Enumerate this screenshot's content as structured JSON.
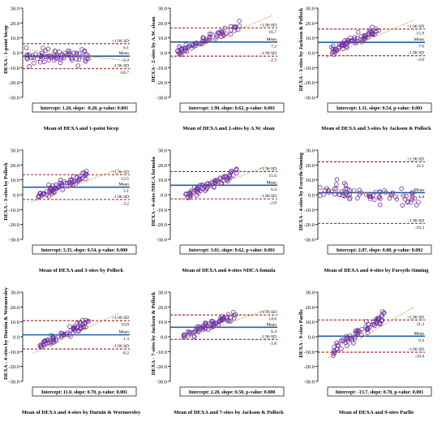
{
  "chart_data": [
    {
      "type": "scatter",
      "ylabel": "DEXA - 1-point bicep",
      "xlabel": "Mean of DEXA and 1-point bicep",
      "ylim": [
        -30,
        30
      ],
      "yticks": [
        "30.0",
        "20.0",
        "10.0",
        "0.0",
        "-10.0",
        "-20.0",
        "-30.0"
      ],
      "mean": -2.3,
      "upper": 6.1,
      "lower": -10.7,
      "mean_text": "-2.3",
      "upper_text": "6.1",
      "lower_text": "-10.7",
      "upper_label": "+1.96 SD",
      "mean_label": "Mean",
      "lower_label": "-1.96 SD",
      "stats": "Intercept: 1.20, slope: -0.20, p-value: 0.001",
      "trend": [
        [
          0.02,
          2.2
        ],
        [
          0.98,
          -5.3
        ]
      ],
      "cloud": {
        "seed": 11,
        "n": 75,
        "xmin": 0.02,
        "xmax": 0.62,
        "ystart": -2.3,
        "yend": -2.3,
        "spread": 4.8
      }
    },
    {
      "type": "scatter",
      "ylabel": "DEXA - 2-sites by A.W. sloan",
      "xlabel": "Mean of DEXA and 2-sites by A.W. sloan",
      "ylim": [
        -30,
        30
      ],
      "yticks": [
        "30.0",
        "20.0",
        "10.0",
        "0.0",
        "-10.0",
        "-20.0",
        "-30.0"
      ],
      "mean": 7.2,
      "upper": 16.7,
      "lower": -2.3,
      "mean_text": "7.2",
      "upper_text": "16.7",
      "lower_text": "-2.3",
      "upper_label": "+1.96 SD",
      "mean_label": "Mean",
      "lower_label": "-1.96 SD",
      "stats": "Intercept: 1.90, slope: 0.62, p-value: 0.001",
      "trend": [
        [
          0.02,
          -3.5
        ],
        [
          0.95,
          25
        ]
      ],
      "cloud": {
        "seed": 23,
        "n": 75,
        "xmin": 0.06,
        "xmax": 0.65,
        "ystart": 0.8,
        "yend": 18,
        "spread": 3.0
      }
    },
    {
      "type": "scatter",
      "ylabel": "DEXA - 3-sites by Jackson & Pollock",
      "xlabel": "Mean of DEXA and 3-sites by Jackson & Pollock",
      "ylim": [
        -30,
        30
      ],
      "yticks": [
        "30.0",
        "20.0",
        "10.0",
        "0.0",
        "-10.0",
        "-20.0",
        "-30.0"
      ],
      "mean": 7.0,
      "upper": 15.9,
      "lower": -2.0,
      "mean_text": "7.0",
      "upper_text": "15.9",
      "lower_text": "-2.0",
      "upper_label": "+1.96 SD",
      "mean_label": "Mean",
      "lower_label": "-1.96 SD",
      "stats": "Intercept: 1.11, slope: 0.54, p-value: 0.001",
      "trend": [
        [
          0.08,
          -3
        ],
        [
          0.9,
          22
        ]
      ],
      "cloud": {
        "seed": 37,
        "n": 75,
        "xmin": 0.12,
        "xmax": 0.58,
        "ystart": 1.0,
        "yend": 16,
        "spread": 3.0
      }
    },
    {
      "type": "scatter",
      "ylabel": "DEXA - 3-sites by Pollock",
      "xlabel": "Mean of DEXA and 3-sites by Pollock",
      "ylim": [
        -30,
        30
      ],
      "yticks": [
        "30.0",
        "20.0",
        "10.0",
        "0.0",
        "-10.0",
        "-20.0",
        "-30.0"
      ],
      "mean": 5.1,
      "upper": 13.5,
      "lower": -3.2,
      "mean_text": "5.1",
      "upper_text": "13.5",
      "lower_text": "-3.2",
      "upper_label": "+1.96 SD",
      "mean_label": "Mean",
      "lower_label": "-1.96 SD",
      "stats": "Intercept: 3.35, slope: 0.54, p-value: 0.000",
      "trend": [
        [
          0.08,
          -5
        ],
        [
          0.9,
          17.5
        ]
      ],
      "cloud": {
        "seed": 41,
        "n": 75,
        "xmin": 0.14,
        "xmax": 0.6,
        "ystart": -1.0,
        "yend": 14,
        "spread": 3.0
      }
    },
    {
      "type": "scatter",
      "ylabel": "DEXA - 4-sites NHCA formula",
      "xlabel": "Mean of DEXA and 4-sites NHCA fomula",
      "ylim": [
        -30,
        30
      ],
      "yticks": [
        "30.0",
        "20.0",
        "10.0",
        "0.0",
        "-10.0",
        "-20.0",
        "-30.0"
      ],
      "mean": 6.4,
      "upper": 15.6,
      "lower": -2.8,
      "mean_text": "6.4",
      "upper_text": "15.6",
      "lower_text": "-2.8",
      "upper_label": "+1.96 SD",
      "mean_label": "Mean",
      "lower_label": "-1.96 SD",
      "stats": "Intercept: 3.01, slope: 0.62, p-value: 0.001",
      "trend": [
        [
          0.1,
          -3.5
        ],
        [
          0.9,
          19.5
        ]
      ],
      "cloud": {
        "seed": 53,
        "n": 75,
        "xmin": 0.14,
        "xmax": 0.62,
        "ystart": -0.5,
        "yend": 15,
        "spread": 3.2
      }
    },
    {
      "type": "scatter",
      "ylabel": "DEXA - 4-sites by Forsyth-Sinning",
      "xlabel": "Mean of DEXA and 4-sites by Forsyth-Sinning",
      "ylim": [
        -30,
        30
      ],
      "yticks": [
        "30.0",
        "20.0",
        "10.0",
        "0.0",
        "-10.0",
        "-20.0",
        "-30.0"
      ],
      "mean": 1.4,
      "upper": 22.1,
      "lower": -19.3,
      "mean_text": "1.4",
      "upper_text": "22.1",
      "lower_text": "-19.3",
      "upper_label": "+1.96 SD",
      "mean_label": "Mean",
      "lower_label": "-1.96 SD",
      "stats": "Intercept: 2.87, slope: 0.08, p-value: 0.002",
      "trend": [
        [
          0.02,
          3.5
        ],
        [
          0.98,
          -1.5
        ]
      ],
      "cloud": {
        "seed": 67,
        "n": 75,
        "xmin": 0.02,
        "xmax": 0.95,
        "ystart": 3.5,
        "yend": -3.0,
        "spread": 5.5
      }
    },
    {
      "type": "scatter",
      "ylabel": "DEXA - 4-sites by Durnin & Wormersley",
      "xlabel": "Mean of DEXA and 4-sites by Durnin & Wormersley",
      "ylim": [
        -30,
        30
      ],
      "yticks": [
        "30.0",
        "20.0",
        "10.0",
        "0.0",
        "-10.0",
        "-20.0",
        "-30.0"
      ],
      "mean": 1.3,
      "upper": 10.8,
      "lower": -8.2,
      "mean_text": "1.3",
      "upper_text": "10.8",
      "lower_text": "-8.2",
      "upper_label": "+1.96 SD",
      "mean_label": "Mean",
      "lower_label": "-1.96 SD",
      "stats": "Intercept: 11.0, slope: 0.70, p-value: 0.001",
      "trend": [
        [
          0.1,
          -11
        ],
        [
          0.9,
          16
        ]
      ],
      "cloud": {
        "seed": 79,
        "n": 75,
        "xmin": 0.16,
        "xmax": 0.62,
        "ystart": -6.0,
        "yend": 10.5,
        "spread": 3.0
      }
    },
    {
      "type": "scatter",
      "ylabel": "DEXA - 7-sites by Jackson & Pollock",
      "xlabel": "Mean of DEXA and 7-sites by Jackson & Pollock",
      "ylim": [
        -30,
        30
      ],
      "yticks": [
        "30.0",
        "20.0",
        "10.0",
        "0.0",
        "-10.0",
        "-20.0",
        "-30.0"
      ],
      "mean": 6.4,
      "upper": 14.6,
      "lower": -1.8,
      "mean_text": "6.4",
      "upper_text": "14.6",
      "lower_text": "-1.8",
      "upper_label": "+1.96 SD",
      "mean_label": "Mean",
      "lower_label": "-1.96 SD",
      "stats": "Intercept: 2.28, slope: 0.58, p-value: 0.000",
      "trend": [
        [
          0.08,
          -2
        ],
        [
          0.9,
          18
        ]
      ],
      "cloud": {
        "seed": 83,
        "n": 75,
        "xmin": 0.12,
        "xmax": 0.62,
        "ystart": 1.0,
        "yend": 15,
        "spread": 2.8
      }
    },
    {
      "type": "scatter",
      "ylabel": "DEXA - 9-sites Parllo",
      "xlabel": "Mean of DEXA and 9-sites Parllo",
      "ylim": [
        -30,
        30
      ],
      "yticks": [
        "30.0",
        "20.0",
        "10.0",
        "0.0",
        "-10.0",
        "-20.0",
        "-30.0"
      ],
      "mean": 0.4,
      "upper": 11.3,
      "lower": -10.4,
      "mean_text": "0.4",
      "upper_text": "11.3",
      "lower_text": "-10.4",
      "upper_label": "+1.96 SD",
      "mean_label": "Mean",
      "lower_label": "-1.96 SD",
      "stats": "Intercept: -13.7, slope: 0.78, p-value: 0.001",
      "trend": [
        [
          0.1,
          -14
        ],
        [
          0.9,
          20
        ]
      ],
      "cloud": {
        "seed": 97,
        "n": 75,
        "xmin": 0.14,
        "xmax": 0.62,
        "ystart": -9.0,
        "yend": 14,
        "spread": 3.4
      }
    }
  ],
  "colors": {
    "mean_line": "#1f5fa6",
    "sd_line": "#9b1d1d",
    "marker": "#7030a0",
    "trend": "#b59b2a",
    "axis": "#000000"
  }
}
